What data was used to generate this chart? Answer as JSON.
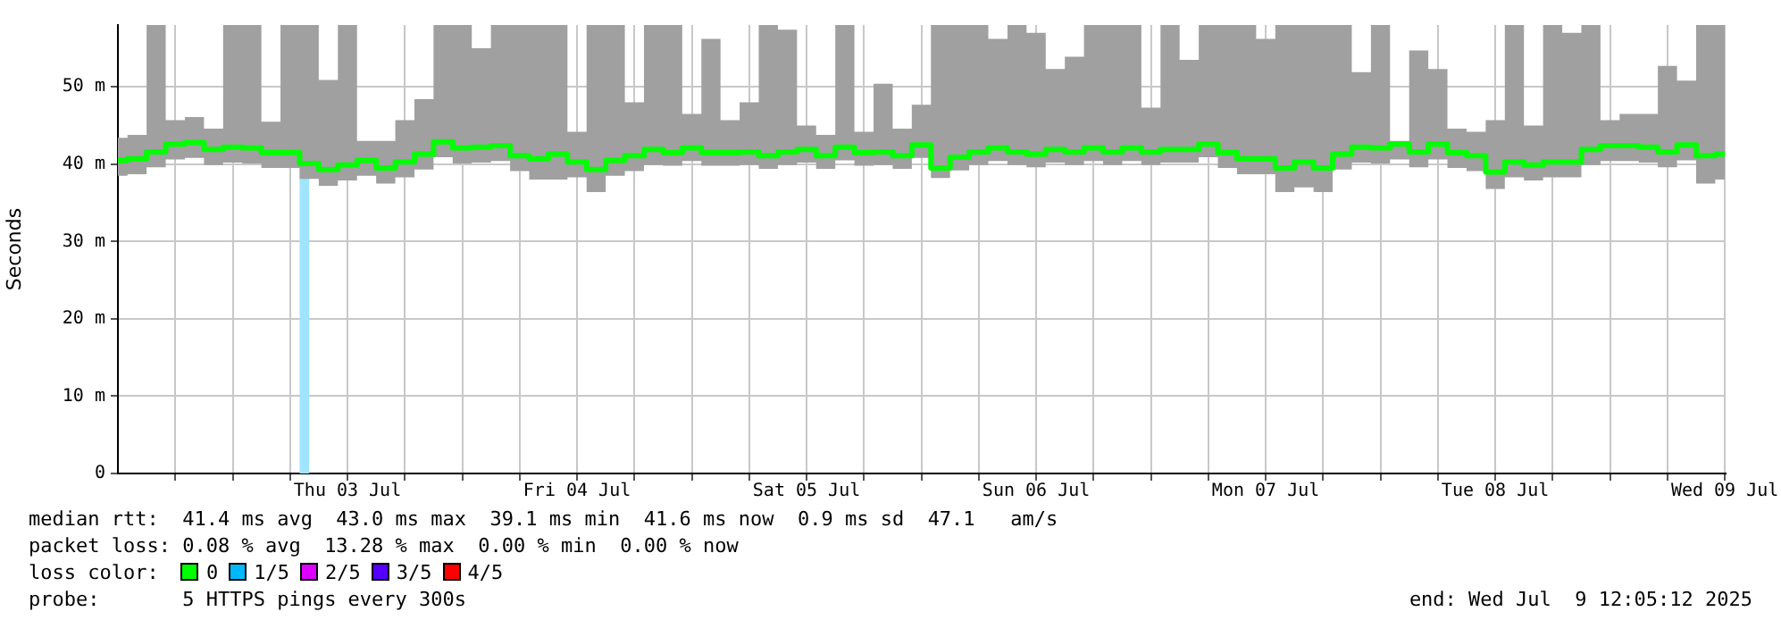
{
  "chart_data": {
    "type": "step",
    "ylabel": "Seconds",
    "x": [
      "2025-07-02T12:00",
      "2025-07-02T14:00",
      "2025-07-02T16:00",
      "2025-07-02T18:00",
      "2025-07-02T20:00",
      "2025-07-02T22:00",
      "2025-07-03T00:00",
      "2025-07-03T02:00",
      "2025-07-03T04:00",
      "2025-07-03T06:00",
      "2025-07-03T08:00",
      "2025-07-03T10:00",
      "2025-07-03T12:00",
      "2025-07-03T14:00",
      "2025-07-03T16:00",
      "2025-07-03T18:00",
      "2025-07-03T20:00",
      "2025-07-03T22:00",
      "2025-07-04T00:00",
      "2025-07-04T02:00",
      "2025-07-04T04:00",
      "2025-07-04T06:00",
      "2025-07-04T08:00",
      "2025-07-04T10:00",
      "2025-07-04T12:00",
      "2025-07-04T14:00",
      "2025-07-04T16:00",
      "2025-07-04T18:00",
      "2025-07-04T20:00",
      "2025-07-04T22:00",
      "2025-07-05T00:00",
      "2025-07-05T02:00",
      "2025-07-05T04:00",
      "2025-07-05T06:00",
      "2025-07-05T08:00",
      "2025-07-05T10:00",
      "2025-07-05T12:00",
      "2025-07-05T14:00",
      "2025-07-05T16:00",
      "2025-07-05T18:00",
      "2025-07-05T20:00",
      "2025-07-05T22:00",
      "2025-07-06T00:00",
      "2025-07-06T02:00",
      "2025-07-06T04:00",
      "2025-07-06T06:00",
      "2025-07-06T08:00",
      "2025-07-06T10:00",
      "2025-07-06T12:00",
      "2025-07-06T14:00",
      "2025-07-06T16:00",
      "2025-07-06T18:00",
      "2025-07-06T20:00",
      "2025-07-06T22:00",
      "2025-07-07T00:00",
      "2025-07-07T02:00",
      "2025-07-07T04:00",
      "2025-07-07T06:00",
      "2025-07-07T08:00",
      "2025-07-07T10:00",
      "2025-07-07T12:00",
      "2025-07-07T14:00",
      "2025-07-07T16:00",
      "2025-07-07T18:00",
      "2025-07-07T20:00",
      "2025-07-07T22:00",
      "2025-07-08T00:00",
      "2025-07-08T02:00",
      "2025-07-08T04:00",
      "2025-07-08T06:00",
      "2025-07-08T08:00",
      "2025-07-08T10:00",
      "2025-07-08T12:00",
      "2025-07-08T14:00",
      "2025-07-08T16:00",
      "2025-07-08T18:00",
      "2025-07-08T20:00",
      "2025-07-08T22:00",
      "2025-07-09T00:00",
      "2025-07-09T02:00",
      "2025-07-09T04:00",
      "2025-07-09T06:00",
      "2025-07-09T08:00",
      "2025-07-09T10:00",
      "2025-07-09T12:00"
    ],
    "series": [
      {
        "color": "#00ff00",
        "values": [
          40.5,
          40.7,
          41.6,
          42.6,
          42.8,
          41.9,
          42.2,
          42.1,
          41.5,
          41.5,
          40.1,
          39.3,
          39.9,
          40.5,
          39.5,
          40.3,
          41.3,
          42.9,
          42.1,
          42.2,
          42.4,
          41.1,
          40.7,
          41.3,
          40.3,
          39.3,
          40.5,
          41.1,
          41.9,
          41.5,
          42.1,
          41.5,
          41.5,
          41.6,
          41.1,
          41.6,
          41.9,
          41.1,
          42.2,
          41.5,
          41.6,
          41.1,
          42.5,
          39.5,
          40.9,
          41.6,
          42.1,
          41.6,
          41.3,
          41.9,
          41.6,
          42.1,
          41.6,
          42.1,
          41.6,
          41.9,
          41.9,
          42.6,
          41.5,
          40.7,
          40.7,
          39.5,
          40.3,
          39.5,
          41.3,
          42.2,
          42.1,
          42.6,
          41.6,
          42.6,
          41.5,
          41.1,
          39.0,
          40.3,
          39.9,
          40.3,
          40.3,
          41.9,
          42.4,
          42.4,
          42.2,
          41.6,
          42.5,
          41.1,
          41.3
        ],
        "lower": [
          38.5,
          38.7,
          39.6,
          40.6,
          40.8,
          39.9,
          40.2,
          40.1,
          39.5,
          39.5,
          38.1,
          37.2,
          37.9,
          38.5,
          37.5,
          38.3,
          39.3,
          40.9,
          40.1,
          40.2,
          40.4,
          39.1,
          38.0,
          38.0,
          38.3,
          36.4,
          38.5,
          39.1,
          39.9,
          39.8,
          40.4,
          39.8,
          39.8,
          39.9,
          39.4,
          39.9,
          40.2,
          39.4,
          40.5,
          39.8,
          39.9,
          39.4,
          40.8,
          38.2,
          39.2,
          39.9,
          40.4,
          39.9,
          39.6,
          40.2,
          39.9,
          40.4,
          39.9,
          40.4,
          39.9,
          40.2,
          40.2,
          40.9,
          39.5,
          38.7,
          38.7,
          36.4,
          37.0,
          36.4,
          39.3,
          40.2,
          40.1,
          40.6,
          39.6,
          40.6,
          39.5,
          39.1,
          36.8,
          38.3,
          37.9,
          38.3,
          38.3,
          39.9,
          40.4,
          40.4,
          40.2,
          39.6,
          40.5,
          37.5,
          38.0
        ],
        "upper": [
          43.4,
          43.8,
          58,
          45.7,
          46.1,
          44.6,
          58,
          58,
          45.5,
          58,
          58,
          50.9,
          58,
          43.0,
          43.0,
          45.7,
          48.4,
          58,
          58,
          55.0,
          58,
          58,
          58,
          58,
          44.2,
          58,
          58,
          48.0,
          58,
          58,
          46.5,
          56.2,
          45.7,
          48.0,
          58,
          57.4,
          45.0,
          43.8,
          58,
          44.2,
          50.4,
          44.6,
          47.7,
          58,
          58,
          58,
          56.2,
          58,
          57.0,
          52.3,
          53.9,
          58,
          58,
          58,
          47.3,
          58,
          53.5,
          58,
          58,
          58,
          56.2,
          58,
          58,
          58,
          58,
          51.9,
          58,
          43.0,
          54.7,
          52.3,
          44.6,
          44.2,
          45.7,
          58,
          45.0,
          58,
          57.0,
          58,
          45.7,
          46.5,
          46.5,
          52.7,
          50.8,
          58,
          58
        ]
      }
    ],
    "xlim": [
      "2025-07-02T12:00",
      "2025-07-09T12:05"
    ],
    "xticks": [
      {
        "value": "2025-07-02T18:00",
        "label": null
      },
      {
        "value": "2025-07-03T00:00",
        "label": null
      },
      {
        "value": "2025-07-03T06:00",
        "label": null
      },
      {
        "value": "2025-07-03T12:00",
        "label": "Thu 03 Jul"
      },
      {
        "value": "2025-07-03T18:00",
        "label": null
      },
      {
        "value": "2025-07-04T00:00",
        "label": null
      },
      {
        "value": "2025-07-04T06:00",
        "label": null
      },
      {
        "value": "2025-07-04T12:00",
        "label": "Fri 04 Jul"
      },
      {
        "value": "2025-07-04T18:00",
        "label": null
      },
      {
        "value": "2025-07-05T00:00",
        "label": null
      },
      {
        "value": "2025-07-05T06:00",
        "label": null
      },
      {
        "value": "2025-07-05T12:00",
        "label": "Sat 05 Jul"
      },
      {
        "value": "2025-07-05T18:00",
        "label": null
      },
      {
        "value": "2025-07-06T00:00",
        "label": null
      },
      {
        "value": "2025-07-06T06:00",
        "label": null
      },
      {
        "value": "2025-07-06T12:00",
        "label": "Sun 06 Jul"
      },
      {
        "value": "2025-07-06T18:00",
        "label": null
      },
      {
        "value": "2025-07-07T00:00",
        "label": null
      },
      {
        "value": "2025-07-07T06:00",
        "label": null
      },
      {
        "value": "2025-07-07T12:00",
        "label": "Mon 07 Jul"
      },
      {
        "value": "2025-07-07T18:00",
        "label": null
      },
      {
        "value": "2025-07-08T00:00",
        "label": null
      },
      {
        "value": "2025-07-08T06:00",
        "label": null
      },
      {
        "value": "2025-07-08T12:00",
        "label": "Tue 08 Jul"
      },
      {
        "value": "2025-07-08T18:00",
        "label": null
      },
      {
        "value": "2025-07-09T00:00",
        "label": null
      },
      {
        "value": "2025-07-09T06:00",
        "label": null
      },
      {
        "value": "2025-07-09T12:00",
        "label": "Wed 09 Jul"
      }
    ],
    "ylim": [
      0,
      58
    ],
    "yticks": [
      0,
      {
        "value": 10,
        "label": "10 m"
      },
      {
        "value": 20,
        "label": "20 m"
      },
      {
        "value": 30,
        "label": "30 m"
      },
      {
        "value": 40,
        "label": "40 m"
      },
      {
        "value": 50,
        "label": "50 m"
      }
    ],
    "bands": [
      {
        "axis": "x",
        "from": "2025-07-03T07:00",
        "to": "2025-07-03T08:00",
        "color": "#a0e4ff"
      }
    ],
    "grid": true,
    "line_style": "solid",
    "legend": false,
    "annotations": [
      "median rtt:  41.4 ms avg  43.0 ms max  39.1 ms min  41.6 ms now  0.9 ms sd  47.1   am/s",
      "packet loss: 0.08 % avg  13.28 % max  0.00 % min  0.00 % now",
      "loss color:  0  1/5  2/5  3/5  4/5",
      "probe:       5 HTTPS pings every 300s",
      "end: Wed Jul  9 12:05:12 2025"
    ]
  }
}
